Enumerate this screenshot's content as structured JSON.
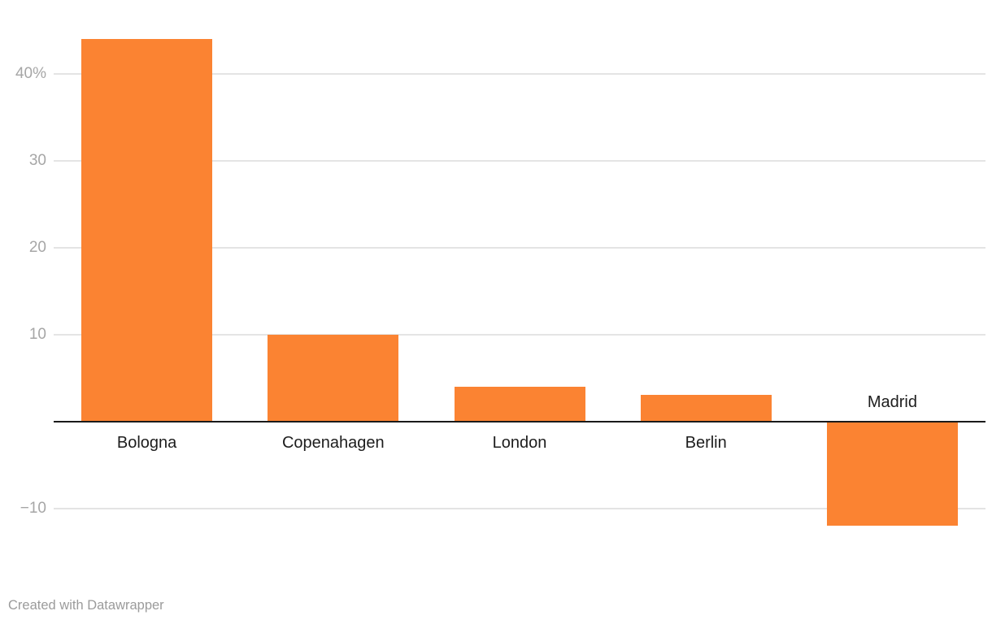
{
  "footer": {
    "credit": "Created with Datawrapper"
  },
  "colors": {
    "background": "#FFFFFF",
    "bar": "#FB8332",
    "grid": "#E4E4E4",
    "tick_label": "#A6A6A6",
    "category_label": "#1D1D1D",
    "zero_line": "#1A1A1A",
    "footer_text": "#9B9B9B"
  },
  "chart_data": {
    "type": "bar",
    "categories": [
      "Bologna",
      "Copenahagen",
      "London",
      "Berlin",
      "Madrid"
    ],
    "values": [
      44,
      10,
      4,
      3,
      -12
    ],
    "title": "",
    "xlabel": "",
    "ylabel": "",
    "ylim": [
      -16,
      47
    ],
    "yticks": [
      {
        "value": 40,
        "label": "40%"
      },
      {
        "value": 30,
        "label": "30"
      },
      {
        "value": 20,
        "label": "20"
      },
      {
        "value": 10,
        "label": "10"
      },
      {
        "value": -10,
        "label": "−10"
      }
    ],
    "grid": true,
    "legend": false,
    "value_suffix": "%"
  }
}
